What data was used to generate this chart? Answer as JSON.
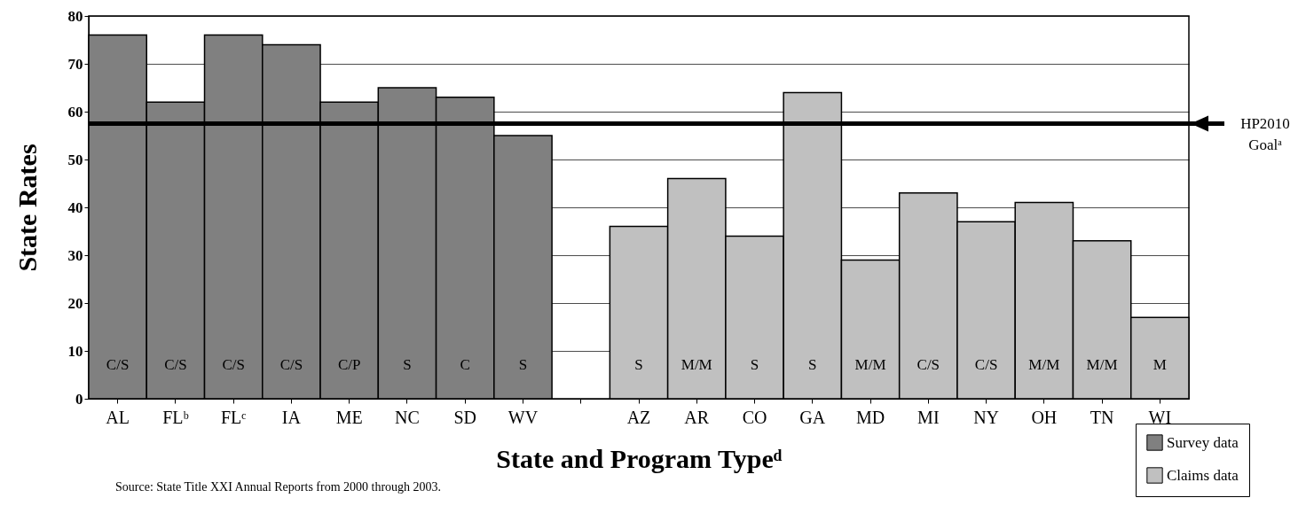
{
  "chart_data": {
    "type": "bar",
    "xlabel": "State and Program Typeᵈ",
    "ylabel": "State Rates",
    "categories": [
      "AL",
      "FLᵇ",
      "FLᶜ",
      "IA",
      "ME",
      "NC",
      "SD",
      "WV",
      null,
      "AZ",
      "AR",
      "CO",
      "GA",
      "MD",
      "MI",
      "NY",
      "OH",
      "TN",
      "WI"
    ],
    "series": [
      {
        "name": "Survey data",
        "color": "#808080",
        "values": [
          76,
          62,
          76,
          74,
          62,
          65,
          63,
          55,
          null,
          null,
          null,
          null,
          null,
          null,
          null,
          null,
          null,
          null,
          null
        ],
        "value_labels": [
          "C/S",
          "C/S",
          "C/S",
          "C/S",
          "C/P",
          "S",
          "C",
          "S",
          null,
          null,
          null,
          null,
          null,
          null,
          null,
          null,
          null,
          null,
          null
        ]
      },
      {
        "name": "Claims data",
        "color": "#c0c0c0",
        "values": [
          null,
          null,
          null,
          null,
          null,
          null,
          null,
          null,
          null,
          36,
          46,
          34,
          64,
          29,
          43,
          37,
          41,
          33,
          17
        ],
        "value_labels": [
          null,
          null,
          null,
          null,
          null,
          null,
          null,
          null,
          null,
          "S",
          "M/M",
          "S",
          "S",
          "M/M",
          "C/S",
          "C/S",
          "M/M",
          "M/M",
          "M"
        ]
      }
    ],
    "ylim": [
      0,
      80
    ],
    "yticks": [
      0,
      10,
      20,
      30,
      40,
      50,
      60,
      70,
      80
    ],
    "grid": "y",
    "legend": "bottom right",
    "ref_lines": [
      {
        "axis": "y",
        "value": 57.5,
        "label": "HP2010 Goalᵃ",
        "color": "#000000"
      }
    ],
    "annotations": [
      "Source:  State Title XXI Annual Reports from 2000 through 2003."
    ]
  }
}
